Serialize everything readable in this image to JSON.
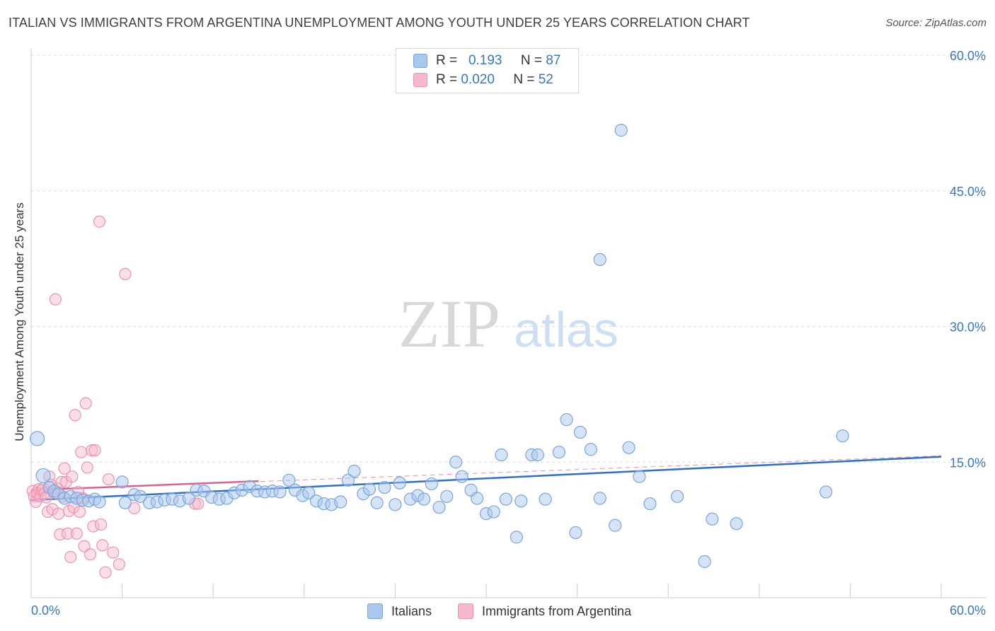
{
  "title": "ITALIAN VS IMMIGRANTS FROM ARGENTINA UNEMPLOYMENT AMONG YOUTH UNDER 25 YEARS CORRELATION CHART",
  "source": "Source: ZipAtlas.com",
  "watermark": {
    "zip": "ZIP",
    "atlas": "atlas"
  },
  "legend": {
    "rows": [
      {
        "r_label": "R =",
        "r_value": "0.193",
        "n_label": "N =",
        "n_value": "87"
      },
      {
        "r_label": "R =",
        "r_value": "0.020",
        "n_label": "N =",
        "n_value": "52"
      }
    ]
  },
  "bottom_legend": {
    "italians": "Italians",
    "argentina": "Immigrants from Argentina"
  },
  "colors": {
    "italians_fill": "#a9c8ee",
    "italians_stroke": "#7aa6dc",
    "italians_line": "#2f6fcc",
    "argentina_fill": "#f6b8cb",
    "argentina_stroke": "#ee93b0",
    "argentina_line": "#e0608e",
    "axis_text": "#3a76c4",
    "grid": "#dddddd"
  },
  "chart_data": {
    "type": "scatter",
    "title": "ITALIAN VS IMMIGRANTS FROM ARGENTINA UNEMPLOYMENT AMONG YOUTH UNDER 25 YEARS CORRELATION CHART",
    "xlabel": "",
    "ylabel": "Unemployment Among Youth under 25 years",
    "xlim": [
      0,
      60
    ],
    "ylim": [
      0,
      60
    ],
    "x_tick_labels": [
      "0.0%",
      "60.0%"
    ],
    "y_ticks": [
      15,
      30,
      45,
      60
    ],
    "y_tick_labels": [
      "15.0%",
      "30.0%",
      "45.0%",
      "60.0%"
    ],
    "series": [
      {
        "name": "Italians",
        "R": 0.193,
        "N": 87,
        "trend": {
          "x": [
            0,
            60
          ],
          "y": [
            10.8,
            15.6
          ]
        },
        "points": [
          [
            0.4,
            17.6
          ],
          [
            0.8,
            13.5
          ],
          [
            1.2,
            12.2
          ],
          [
            1.5,
            11.8
          ],
          [
            1.8,
            11.5
          ],
          [
            2.2,
            11.0
          ],
          [
            2.6,
            11.2
          ],
          [
            3.0,
            11.0
          ],
          [
            3.4,
            10.8
          ],
          [
            3.8,
            10.7
          ],
          [
            4.2,
            10.9
          ],
          [
            4.5,
            10.6
          ],
          [
            6.0,
            12.8
          ],
          [
            6.2,
            10.5
          ],
          [
            6.8,
            11.4
          ],
          [
            7.2,
            11.2
          ],
          [
            7.8,
            10.5
          ],
          [
            8.3,
            10.6
          ],
          [
            8.8,
            10.8
          ],
          [
            9.3,
            10.9
          ],
          [
            9.8,
            10.7
          ],
          [
            10.4,
            11.0
          ],
          [
            10.9,
            11.9
          ],
          [
            11.4,
            11.8
          ],
          [
            11.9,
            11.1
          ],
          [
            12.4,
            10.9
          ],
          [
            12.9,
            11.0
          ],
          [
            13.4,
            11.6
          ],
          [
            13.9,
            11.9
          ],
          [
            14.4,
            12.3
          ],
          [
            14.9,
            11.8
          ],
          [
            15.4,
            11.7
          ],
          [
            15.9,
            11.8
          ],
          [
            16.4,
            11.7
          ],
          [
            17.0,
            13.0
          ],
          [
            17.4,
            11.9
          ],
          [
            17.9,
            11.3
          ],
          [
            18.3,
            11.6
          ],
          [
            18.8,
            10.7
          ],
          [
            19.3,
            10.4
          ],
          [
            19.8,
            10.3
          ],
          [
            20.4,
            10.6
          ],
          [
            20.9,
            13.0
          ],
          [
            21.3,
            14.0
          ],
          [
            21.9,
            11.5
          ],
          [
            22.3,
            12.0
          ],
          [
            22.8,
            10.5
          ],
          [
            23.3,
            12.2
          ],
          [
            24.0,
            10.3
          ],
          [
            24.3,
            12.7
          ],
          [
            25.0,
            10.9
          ],
          [
            25.5,
            11.3
          ],
          [
            25.9,
            10.9
          ],
          [
            26.4,
            12.6
          ],
          [
            26.9,
            10.0
          ],
          [
            27.4,
            11.2
          ],
          [
            28.0,
            15.0
          ],
          [
            28.4,
            13.4
          ],
          [
            29.0,
            11.9
          ],
          [
            29.4,
            11.0
          ],
          [
            30.0,
            9.3
          ],
          [
            30.5,
            9.5
          ],
          [
            31.0,
            15.8
          ],
          [
            31.3,
            10.9
          ],
          [
            32.0,
            6.7
          ],
          [
            32.3,
            10.7
          ],
          [
            33.0,
            15.8
          ],
          [
            33.4,
            15.8
          ],
          [
            33.9,
            10.9
          ],
          [
            34.8,
            16.1
          ],
          [
            35.3,
            19.7
          ],
          [
            35.9,
            7.2
          ],
          [
            36.2,
            18.3
          ],
          [
            36.9,
            16.4
          ],
          [
            37.5,
            37.4
          ],
          [
            37.5,
            11.0
          ],
          [
            38.5,
            8.0
          ],
          [
            38.9,
            51.7
          ],
          [
            39.4,
            16.6
          ],
          [
            40.1,
            13.4
          ],
          [
            40.8,
            10.4
          ],
          [
            42.6,
            11.2
          ],
          [
            44.4,
            4.0
          ],
          [
            44.9,
            8.7
          ],
          [
            46.5,
            8.2
          ],
          [
            52.4,
            11.7
          ],
          [
            53.5,
            17.9
          ]
        ]
      },
      {
        "name": "Immigrants from Argentina",
        "R": 0.02,
        "N": 52,
        "trend": {
          "x": [
            0,
            15
          ],
          "y": [
            11.9,
            12.9
          ]
        },
        "trend_extended": {
          "x": [
            0,
            60
          ],
          "y": [
            11.9,
            15.7
          ]
        },
        "points": [
          [
            0.1,
            11.8
          ],
          [
            0.2,
            11.2
          ],
          [
            0.3,
            10.6
          ],
          [
            0.4,
            11.6
          ],
          [
            0.5,
            12.0
          ],
          [
            0.6,
            11.2
          ],
          [
            0.7,
            11.9
          ],
          [
            0.8,
            12.1
          ],
          [
            0.9,
            11.6
          ],
          [
            1.0,
            11.1
          ],
          [
            1.1,
            9.5
          ],
          [
            1.2,
            13.4
          ],
          [
            1.3,
            12.5
          ],
          [
            1.4,
            9.8
          ],
          [
            1.5,
            11.6
          ],
          [
            1.6,
            33.0
          ],
          [
            1.7,
            12.1
          ],
          [
            1.8,
            9.3
          ],
          [
            1.9,
            7.0
          ],
          [
            2.0,
            12.8
          ],
          [
            2.1,
            11.2
          ],
          [
            2.2,
            14.3
          ],
          [
            2.3,
            12.8
          ],
          [
            2.4,
            7.1
          ],
          [
            2.5,
            9.6
          ],
          [
            2.6,
            4.5
          ],
          [
            2.7,
            13.4
          ],
          [
            2.8,
            10.0
          ],
          [
            2.9,
            20.2
          ],
          [
            3.0,
            7.1
          ],
          [
            3.1,
            11.7
          ],
          [
            3.2,
            9.5
          ],
          [
            3.3,
            16.1
          ],
          [
            3.4,
            11.0
          ],
          [
            3.5,
            5.7
          ],
          [
            3.6,
            21.5
          ],
          [
            3.7,
            14.4
          ],
          [
            3.9,
            4.8
          ],
          [
            4.0,
            16.3
          ],
          [
            4.1,
            7.9
          ],
          [
            4.2,
            16.3
          ],
          [
            4.5,
            41.6
          ],
          [
            4.6,
            8.1
          ],
          [
            4.7,
            5.8
          ],
          [
            4.9,
            2.8
          ],
          [
            5.1,
            13.1
          ],
          [
            5.4,
            5.0
          ],
          [
            5.8,
            3.7
          ],
          [
            6.2,
            35.8
          ],
          [
            6.8,
            9.9
          ],
          [
            10.8,
            10.4
          ],
          [
            11.0,
            10.4
          ]
        ]
      }
    ]
  }
}
